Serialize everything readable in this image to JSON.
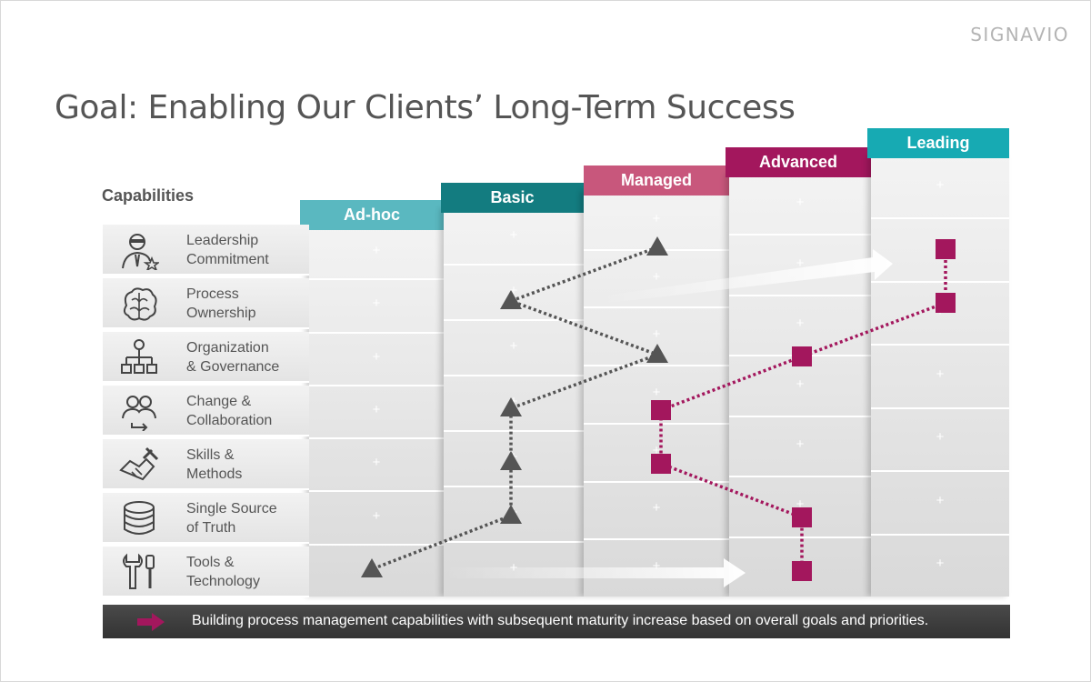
{
  "brand": "SIGNAVIO",
  "title": "Goal: Enabling Our Clients’ Long-Term Success",
  "capabilities_heading": "Capabilities",
  "capabilities": [
    {
      "label": "Leadership\nCommitment",
      "icon": "leader-star-icon"
    },
    {
      "label": "Process\nOwnership",
      "icon": "brain-icon"
    },
    {
      "label": "Organization\n& Governance",
      "icon": "org-chart-icon"
    },
    {
      "label": "Change &\nCollaboration",
      "icon": "people-arrow-icon"
    },
    {
      "label": "Skills &\nMethods",
      "icon": "handshake-hammer-icon"
    },
    {
      "label": "Single Source\nof Truth",
      "icon": "database-icon"
    },
    {
      "label": "Tools &\nTechnology",
      "icon": "wrench-screwdriver-icon"
    }
  ],
  "stages": [
    {
      "label": "Ad-hoc",
      "color": "#5ab8c0"
    },
    {
      "label": "Basic",
      "color": "#137c80"
    },
    {
      "label": "Managed",
      "color": "#c8577c"
    },
    {
      "label": "Advanced",
      "color": "#a3175d"
    },
    {
      "label": "Leading",
      "color": "#17aab3"
    }
  ],
  "series": [
    {
      "marker": "triangle",
      "color": "#555555",
      "levels": [
        "Managed",
        "Basic",
        "Managed",
        "Basic",
        "Basic",
        "Basic",
        "Ad-hoc"
      ]
    },
    {
      "marker": "square",
      "color": "#a3175d",
      "levels": [
        "Leading",
        "Leading",
        "Advanced",
        "Managed",
        "Managed",
        "Advanced",
        "Advanced"
      ]
    }
  ],
  "footer": {
    "text": "Building process management capabilities with subsequent maturity increase based on overall goals and priorities.",
    "arrow_color": "#a3175d"
  }
}
